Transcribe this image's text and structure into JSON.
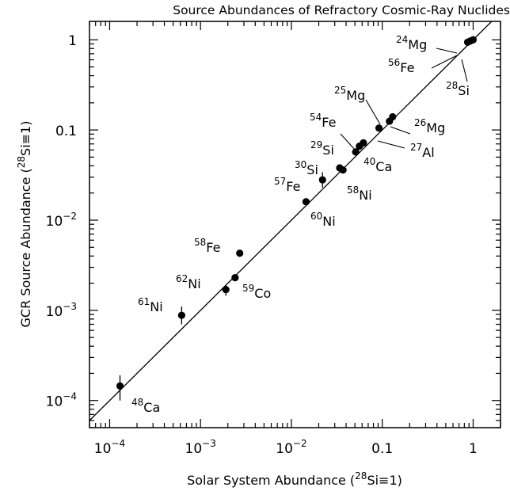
{
  "chart_data": {
    "type": "scatter",
    "title": "Source Abundances of Refractory Cosmic-Ray Nuclides",
    "xlabel": {
      "text": "Solar System Abundance (",
      "sup": "28",
      "tail": "Si≡1)"
    },
    "ylabel": {
      "text": "GCR Source Abundance (",
      "sup": "28",
      "tail": "Si≡1)"
    },
    "xscale": "log",
    "yscale": "log",
    "xlim": [
      6e-05,
      2.0
    ],
    "ylim": [
      5e-05,
      1.6
    ],
    "xticks": [
      {
        "value": 0.0001,
        "base": "10",
        "exp": "−4"
      },
      {
        "value": 0.001,
        "base": "10",
        "exp": "−3"
      },
      {
        "value": 0.01,
        "base": "10",
        "exp": "−2"
      },
      {
        "value": 0.1,
        "base": "0.1",
        "exp": ""
      },
      {
        "value": 1,
        "base": "1",
        "exp": ""
      }
    ],
    "yticks": [
      {
        "value": 0.0001,
        "base": "10",
        "exp": "−4"
      },
      {
        "value": 0.001,
        "base": "10",
        "exp": "−3"
      },
      {
        "value": 0.01,
        "base": "10",
        "exp": "−2"
      },
      {
        "value": 0.1,
        "base": "0.1",
        "exp": ""
      },
      {
        "value": 1,
        "base": "1",
        "exp": ""
      }
    ],
    "reference_line": "y = x",
    "grid": false,
    "points": [
      {
        "iso": "28",
        "el": "Si",
        "x": 1.0,
        "y": 1.0,
        "ylo": 1.0,
        "yhi": 1.0
      },
      {
        "iso": "24",
        "el": "Mg",
        "x": 0.93,
        "y": 0.97,
        "ylo": 0.97,
        "yhi": 0.97
      },
      {
        "iso": "56",
        "el": "Fe",
        "x": 0.87,
        "y": 0.94,
        "ylo": 0.94,
        "yhi": 0.94
      },
      {
        "iso": "26",
        "el": "Mg",
        "x": 0.13,
        "y": 0.14,
        "ylo": 0.14,
        "yhi": 0.14
      },
      {
        "iso": "25",
        "el": "Mg",
        "x": 0.12,
        "y": 0.125,
        "ylo": 0.125,
        "yhi": 0.125
      },
      {
        "iso": "27",
        "el": "Al",
        "x": 0.092,
        "y": 0.105,
        "ylo": 0.105,
        "yhi": 0.105
      },
      {
        "iso": "40",
        "el": "Ca",
        "x": 0.062,
        "y": 0.072,
        "ylo": 0.072,
        "yhi": 0.072
      },
      {
        "iso": "54",
        "el": "Fe",
        "x": 0.056,
        "y": 0.066,
        "ylo": 0.066,
        "yhi": 0.066
      },
      {
        "iso": "29",
        "el": "Si",
        "x": 0.051,
        "y": 0.057,
        "ylo": 0.057,
        "yhi": 0.057
      },
      {
        "iso": "30",
        "el": "Si",
        "x": 0.034,
        "y": 0.038,
        "ylo": 0.038,
        "yhi": 0.038
      },
      {
        "iso": "58",
        "el": "Ni",
        "x": 0.037,
        "y": 0.036,
        "ylo": 0.036,
        "yhi": 0.036
      },
      {
        "iso": "57",
        "el": "Fe",
        "x": 0.022,
        "y": 0.028,
        "ylo": 0.023,
        "yhi": 0.034
      },
      {
        "iso": "60",
        "el": "Ni",
        "x": 0.0145,
        "y": 0.016,
        "ylo": 0.016,
        "yhi": 0.016
      },
      {
        "iso": "58",
        "el": "Fe",
        "x": 0.0027,
        "y": 0.0043,
        "ylo": 0.0043,
        "yhi": 0.0043
      },
      {
        "iso": "59",
        "el": "Co",
        "x": 0.0024,
        "y": 0.0023,
        "ylo": 0.0023,
        "yhi": 0.0023
      },
      {
        "iso": "62",
        "el": "Ni",
        "x": 0.0019,
        "y": 0.0017,
        "ylo": 0.00145,
        "yhi": 0.0019
      },
      {
        "iso": "61",
        "el": "Ni",
        "x": 0.00062,
        "y": 0.00088,
        "ylo": 0.0007,
        "yhi": 0.0011
      },
      {
        "iso": "48",
        "el": "Ca",
        "x": 0.00013,
        "y": 0.000145,
        "ylo": 0.0001,
        "yhi": 0.00019
      }
    ]
  }
}
